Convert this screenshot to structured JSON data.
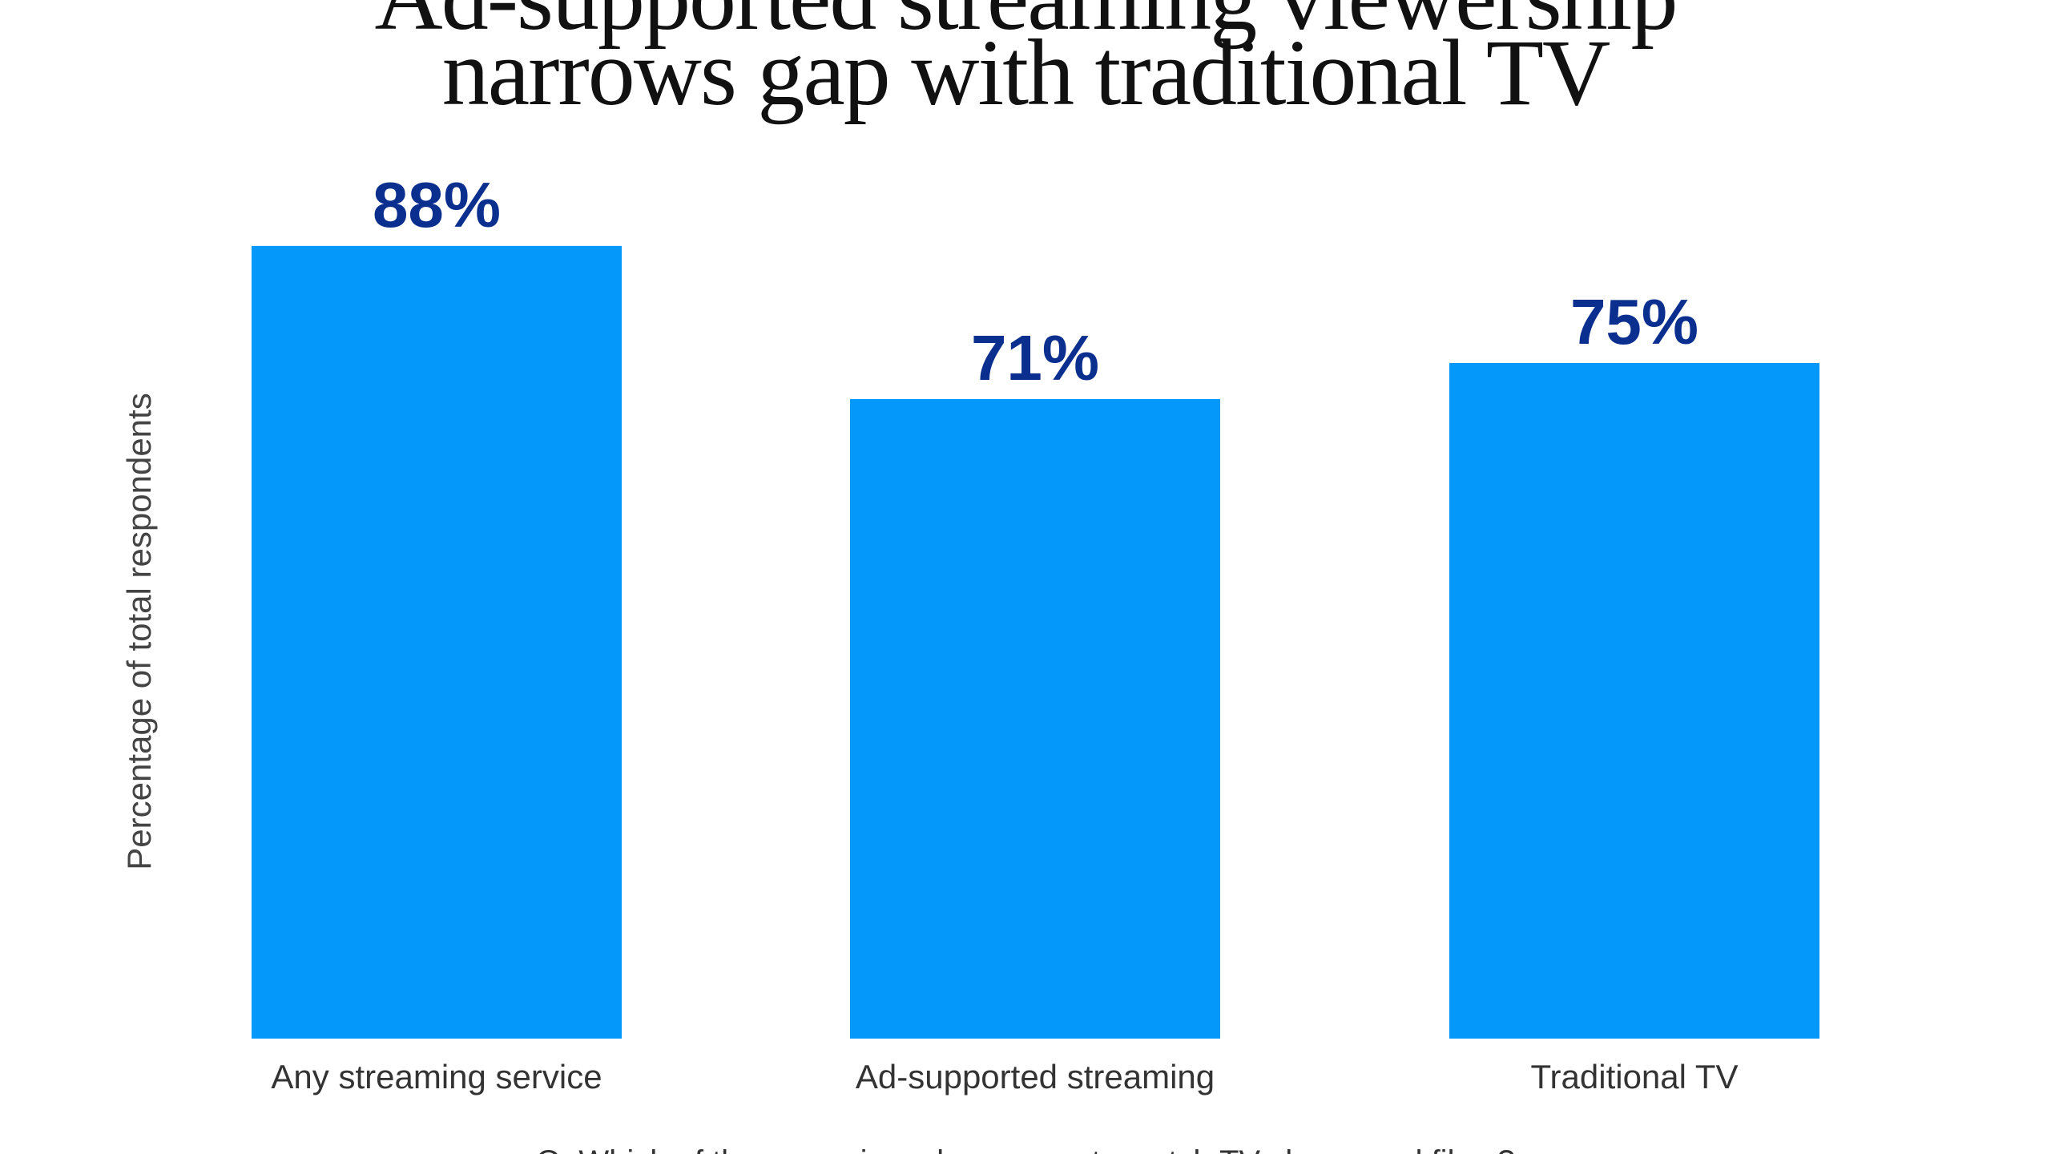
{
  "chart_data": {
    "type": "bar",
    "title_lines": [
      "Ad-supported streaming viewership",
      "narrows gap with traditional TV"
    ],
    "ylabel": "Percentage of total respondents",
    "xlabel": "",
    "categories": [
      "Any streaming service",
      "Ad-supported streaming",
      "Traditional TV"
    ],
    "values": [
      88,
      71,
      75
    ],
    "value_labels": [
      "88%",
      "71%",
      "75%"
    ],
    "ylim": [
      0,
      100
    ],
    "grid": false,
    "legend": "none",
    "footnote": "Q: Which of these services do you use to watch TV shows and films?",
    "colors": {
      "bar": "#0398FA",
      "value_label": "#0B2F8F",
      "title": "#111111"
    }
  }
}
